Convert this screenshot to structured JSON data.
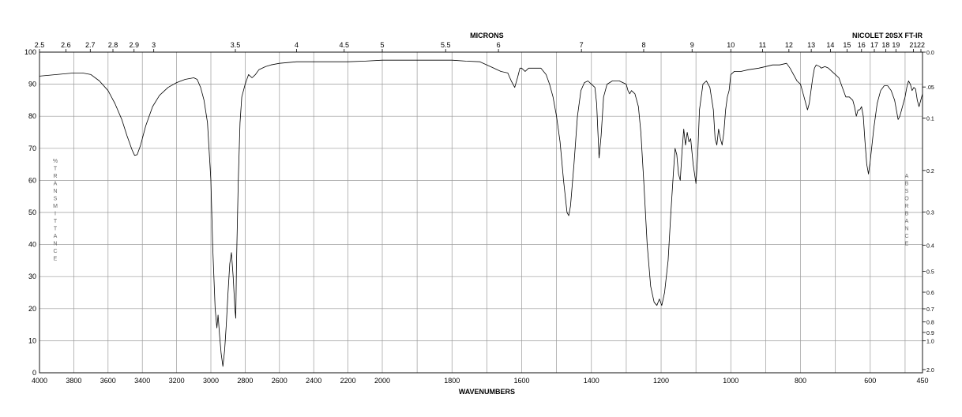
{
  "instrument": "NICOLET 20SX FT-IR",
  "chart_data": {
    "type": "line",
    "title": "NICOLET 20SX FT-IR",
    "xlabel": "WAVENUMBERS",
    "x2label": "MICRONS",
    "ylabel": "% TRANSMITTANCE",
    "y2label": "ABSORBANCE",
    "xlim": [
      4000,
      450
    ],
    "ylim": [
      0,
      100
    ],
    "grid": true,
    "x_ticks": [
      "4000",
      "3800",
      "3600",
      "3400",
      "3200",
      "3000",
      "2800",
      "2600",
      "2400",
      "2200",
      "2000",
      "1800",
      "1600",
      "1400",
      "1200",
      "1000",
      "800",
      "600",
      "450"
    ],
    "micron_ticks": [
      "2.5",
      "2.6",
      "2.7",
      "2.8",
      "2.9",
      "3",
      "3.5",
      "4",
      "4.5",
      "5",
      "5.5",
      "6",
      "7",
      "8",
      "9",
      "10",
      "11",
      "12",
      "13",
      "14",
      "15",
      "16",
      "17",
      "18",
      "19",
      "21",
      "22"
    ],
    "micron_values": [
      2.5,
      2.6,
      2.7,
      2.8,
      2.9,
      3,
      3.5,
      4,
      4.5,
      5,
      5.5,
      6,
      7,
      8,
      9,
      10,
      11,
      12,
      13,
      14,
      15,
      16,
      17,
      18,
      19,
      21,
      22
    ],
    "y_ticks": [
      "100",
      "90",
      "80",
      "70",
      "60",
      "50",
      "40",
      "30",
      "20",
      "10",
      "0"
    ],
    "absorbance_ticks": [
      "0.0",
      ".05",
      "0.1",
      "0.2",
      "0.3",
      "0.4",
      "0.5",
      "0.6",
      "0.7",
      "0.8",
      "0.9",
      "1.0",
      "2.0"
    ],
    "absorbance_values": [
      0.0,
      0.05,
      0.1,
      0.2,
      0.3,
      0.4,
      0.5,
      0.6,
      0.7,
      0.8,
      0.9,
      1.0,
      2.0
    ],
    "series": [
      {
        "points": [
          [
            4000,
            92.5
          ],
          [
            3900,
            93
          ],
          [
            3800,
            93.5
          ],
          [
            3750,
            93.5
          ],
          [
            3700,
            93
          ],
          [
            3650,
            91
          ],
          [
            3600,
            88
          ],
          [
            3560,
            84
          ],
          [
            3520,
            79
          ],
          [
            3490,
            74
          ],
          [
            3460,
            69.5
          ],
          [
            3445,
            67.8
          ],
          [
            3430,
            68
          ],
          [
            3410,
            71
          ],
          [
            3380,
            77
          ],
          [
            3340,
            83
          ],
          [
            3300,
            86.5
          ],
          [
            3250,
            89
          ],
          [
            3200,
            90.5
          ],
          [
            3150,
            91.5
          ],
          [
            3100,
            92
          ],
          [
            3080,
            91.5
          ],
          [
            3060,
            89
          ],
          [
            3040,
            85
          ],
          [
            3020,
            78
          ],
          [
            3000,
            60
          ],
          [
            2990,
            40
          ],
          [
            2975,
            20
          ],
          [
            2965,
            14
          ],
          [
            2958,
            18
          ],
          [
            2950,
            12
          ],
          [
            2940,
            6
          ],
          [
            2930,
            2
          ],
          [
            2920,
            7
          ],
          [
            2910,
            15
          ],
          [
            2900,
            25
          ],
          [
            2890,
            34
          ],
          [
            2880,
            37.5
          ],
          [
            2870,
            30
          ],
          [
            2860,
            20
          ],
          [
            2855,
            17
          ],
          [
            2850,
            35
          ],
          [
            2840,
            60
          ],
          [
            2830,
            78
          ],
          [
            2820,
            86
          ],
          [
            2800,
            90
          ],
          [
            2780,
            93
          ],
          [
            2760,
            92
          ],
          [
            2740,
            93
          ],
          [
            2720,
            94.5
          ],
          [
            2700,
            95
          ],
          [
            2680,
            95.5
          ],
          [
            2650,
            96
          ],
          [
            2600,
            96.5
          ],
          [
            2500,
            97
          ],
          [
            2400,
            97
          ],
          [
            2300,
            97
          ],
          [
            2200,
            97
          ],
          [
            2100,
            97.2
          ],
          [
            2000,
            97.5
          ],
          [
            1900,
            97.5
          ],
          [
            1800,
            97.5
          ],
          [
            1760,
            97.2
          ],
          [
            1720,
            97
          ],
          [
            1700,
            96
          ],
          [
            1680,
            95
          ],
          [
            1660,
            94
          ],
          [
            1640,
            93.5
          ],
          [
            1630,
            91
          ],
          [
            1620,
            89
          ],
          [
            1612,
            92
          ],
          [
            1605,
            95
          ],
          [
            1600,
            95
          ],
          [
            1590,
            94
          ],
          [
            1580,
            95
          ],
          [
            1560,
            95
          ],
          [
            1545,
            95
          ],
          [
            1530,
            93
          ],
          [
            1520,
            90
          ],
          [
            1510,
            86
          ],
          [
            1500,
            80
          ],
          [
            1490,
            72
          ],
          [
            1480,
            60
          ],
          [
            1470,
            50
          ],
          [
            1465,
            49
          ],
          [
            1460,
            52
          ],
          [
            1450,
            65
          ],
          [
            1440,
            80
          ],
          [
            1430,
            88
          ],
          [
            1420,
            90.5
          ],
          [
            1410,
            91
          ],
          [
            1400,
            90
          ],
          [
            1390,
            89
          ],
          [
            1385,
            84
          ],
          [
            1378,
            67
          ],
          [
            1372,
            74
          ],
          [
            1365,
            86
          ],
          [
            1355,
            90
          ],
          [
            1340,
            91
          ],
          [
            1320,
            91
          ],
          [
            1300,
            90
          ],
          [
            1295,
            88
          ],
          [
            1290,
            87
          ],
          [
            1285,
            88
          ],
          [
            1275,
            87
          ],
          [
            1265,
            83
          ],
          [
            1258,
            75
          ],
          [
            1250,
            60
          ],
          [
            1240,
            40
          ],
          [
            1230,
            27
          ],
          [
            1220,
            22
          ],
          [
            1212,
            21
          ],
          [
            1205,
            23
          ],
          [
            1198,
            21
          ],
          [
            1190,
            25
          ],
          [
            1180,
            35
          ],
          [
            1172,
            50
          ],
          [
            1165,
            62
          ],
          [
            1160,
            70
          ],
          [
            1155,
            68
          ],
          [
            1150,
            62
          ],
          [
            1145,
            60
          ],
          [
            1140,
            69
          ],
          [
            1135,
            76
          ],
          [
            1130,
            71
          ],
          [
            1125,
            75
          ],
          [
            1120,
            72
          ],
          [
            1115,
            73
          ],
          [
            1108,
            65
          ],
          [
            1100,
            59
          ],
          [
            1095,
            68
          ],
          [
            1090,
            82
          ],
          [
            1080,
            90
          ],
          [
            1070,
            91
          ],
          [
            1060,
            89
          ],
          [
            1050,
            82
          ],
          [
            1045,
            73
          ],
          [
            1040,
            71
          ],
          [
            1035,
            76
          ],
          [
            1030,
            73
          ],
          [
            1025,
            71
          ],
          [
            1020,
            75
          ],
          [
            1015,
            82
          ],
          [
            1010,
            86
          ],
          [
            1005,
            88
          ],
          [
            1000,
            93
          ],
          [
            990,
            94
          ],
          [
            970,
            94
          ],
          [
            950,
            94.5
          ],
          [
            920,
            95
          ],
          [
            900,
            95.5
          ],
          [
            880,
            96
          ],
          [
            860,
            96
          ],
          [
            840,
            96.5
          ],
          [
            830,
            95
          ],
          [
            820,
            93
          ],
          [
            810,
            91
          ],
          [
            800,
            90
          ],
          [
            795,
            88
          ],
          [
            790,
            86
          ],
          [
            785,
            84
          ],
          [
            780,
            82
          ],
          [
            775,
            84
          ],
          [
            770,
            88
          ],
          [
            765,
            92
          ],
          [
            760,
            95
          ],
          [
            755,
            96
          ],
          [
            745,
            95.5
          ],
          [
            740,
            95
          ],
          [
            730,
            95.5
          ],
          [
            720,
            95
          ],
          [
            710,
            94
          ],
          [
            700,
            93
          ],
          [
            690,
            92
          ],
          [
            680,
            89
          ],
          [
            670,
            86
          ],
          [
            660,
            86
          ],
          [
            650,
            85
          ],
          [
            645,
            83
          ],
          [
            640,
            80
          ],
          [
            635,
            82
          ],
          [
            630,
            82
          ],
          [
            625,
            83
          ],
          [
            620,
            80
          ],
          [
            615,
            72
          ],
          [
            610,
            65
          ],
          [
            605,
            62
          ],
          [
            600,
            66
          ],
          [
            590,
            76
          ],
          [
            580,
            84
          ],
          [
            570,
            88
          ],
          [
            560,
            89.5
          ],
          [
            550,
            89.5
          ],
          [
            540,
            88
          ],
          [
            530,
            85
          ],
          [
            525,
            82
          ],
          [
            520,
            79
          ],
          [
            515,
            80
          ],
          [
            510,
            82
          ],
          [
            505,
            84
          ],
          [
            500,
            86
          ],
          [
            495,
            89
          ],
          [
            490,
            91
          ],
          [
            485,
            90
          ],
          [
            480,
            88
          ],
          [
            475,
            89
          ],
          [
            470,
            88.5
          ],
          [
            465,
            85
          ],
          [
            460,
            83
          ],
          [
            455,
            85
          ],
          [
            450,
            87
          ]
        ]
      }
    ]
  }
}
